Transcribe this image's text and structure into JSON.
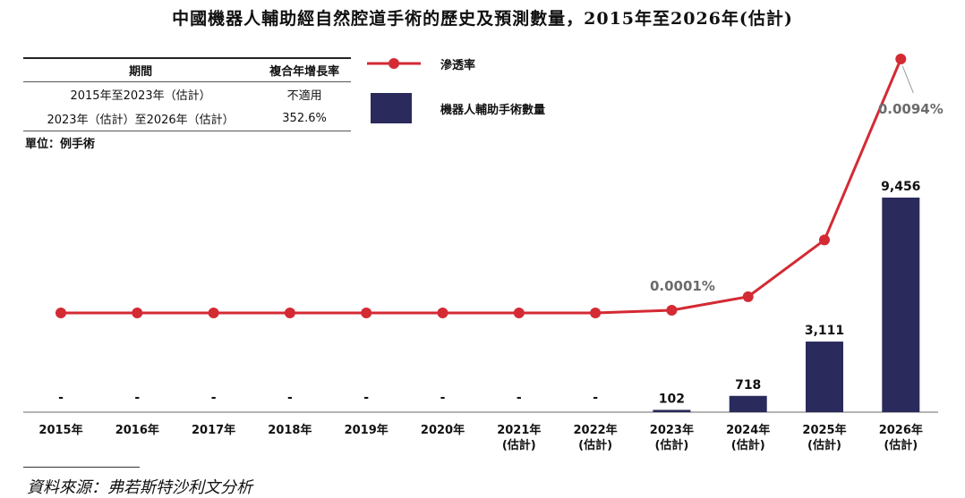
{
  "title": "中國機器人輔助經自然腔道手術的歷史及預測數量，2015年至2026年(估計)",
  "cagr_table": {
    "headers": [
      "期間",
      "複合年增長率"
    ],
    "rows": [
      [
        "2015年至2023年（估計）",
        "不適用"
      ],
      [
        "2023年（估計）至2026年（估計）",
        "352.6%"
      ]
    ]
  },
  "unit": "單位：例手術",
  "source": "資料來源：弗若斯特沙利文分析",
  "colors": {
    "bar": "#2b2a5c",
    "line": "#d42a34",
    "rate_label": "#6b6b6b"
  },
  "chart_data": {
    "type": "bar",
    "categories": [
      [
        "2015年"
      ],
      [
        "2016年"
      ],
      [
        "2017年"
      ],
      [
        "2018年"
      ],
      [
        "2019年"
      ],
      [
        "2020年"
      ],
      [
        "2021年",
        "(估計)"
      ],
      [
        "2022年",
        "(估計)"
      ],
      [
        "2023年",
        "(估計)"
      ],
      [
        "2024年",
        "(估計)"
      ],
      [
        "2025年",
        "(估計)"
      ],
      [
        "2026年",
        "(估計)"
      ]
    ],
    "series": [
      {
        "name": "機器人輔助手術數量",
        "type": "bar",
        "values": [
          null,
          null,
          null,
          null,
          null,
          null,
          null,
          null,
          102,
          718,
          3111,
          9456
        ],
        "labels": [
          "-",
          "-",
          "-",
          "-",
          "-",
          "-",
          "-",
          "-",
          "102",
          "718",
          "3,111",
          "9,456"
        ]
      },
      {
        "name": "滲透率",
        "type": "line",
        "unit": "%",
        "values": [
          0,
          0,
          0,
          0,
          0,
          0,
          0,
          0,
          0.0001,
          0.0006,
          0.0027,
          0.0094
        ],
        "labels": [
          "",
          "",
          "",
          "",
          "",
          "",
          "",
          "",
          "0.0001%",
          "",
          "",
          "0.0094%"
        ]
      }
    ],
    "legend": "top-center",
    "grid": false
  }
}
